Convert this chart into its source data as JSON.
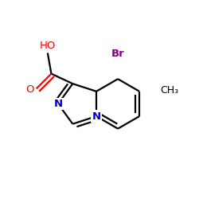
{
  "bg_color": "#ffffff",
  "bond_color": "#000000",
  "N_color": "#0000cc",
  "O_color": "#ff0000",
  "Br_color": "#800080",
  "line_width": 1.6,
  "figsize": [
    2.5,
    2.5
  ],
  "dpi": 100,
  "xlim": [
    0.05,
    0.95
  ],
  "ylim": [
    0.2,
    0.85
  ]
}
